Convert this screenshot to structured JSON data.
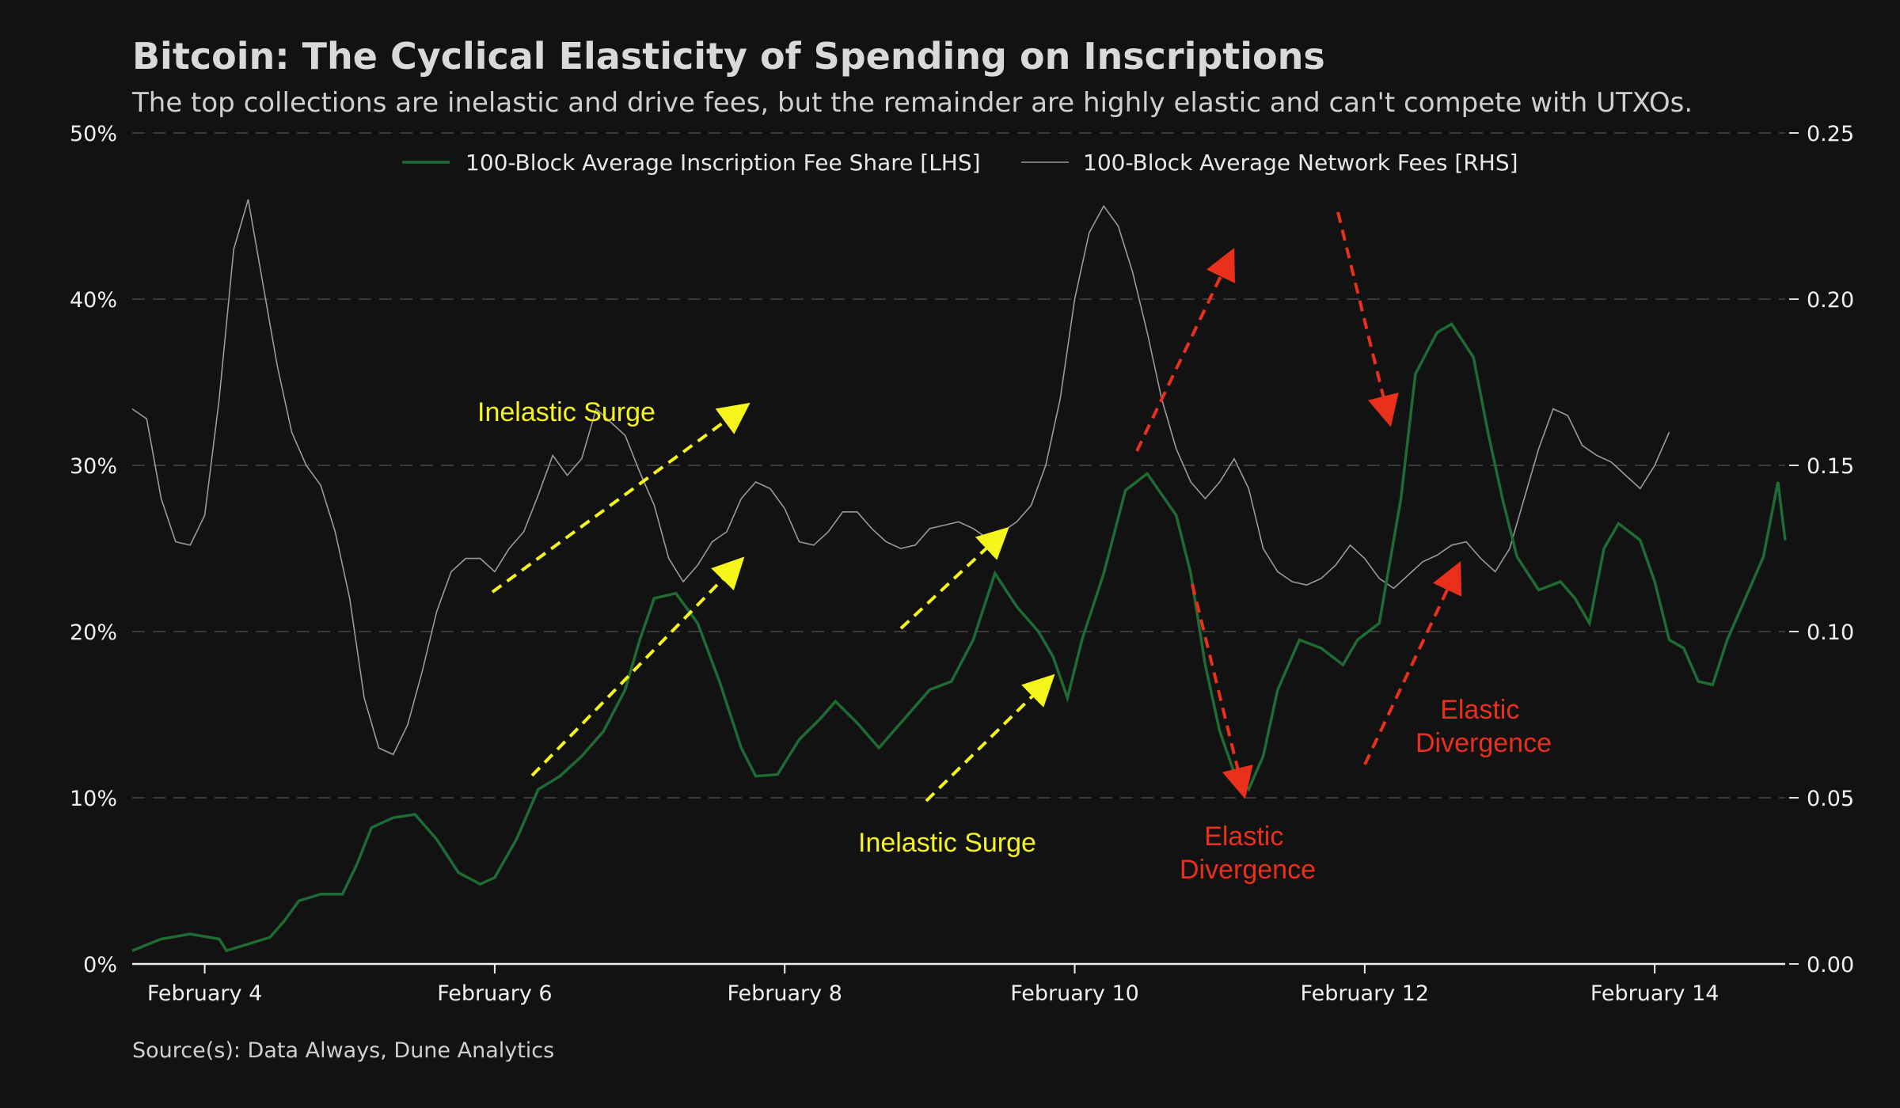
{
  "title": "Bitcoin: The Cyclical Elasticity of Spending on Inscriptions",
  "subtitle": "The top collections are inelastic and drive fees, but the remainder are highly elastic and can't compete with UTXOs.",
  "source": "Source(s): Data Always, Dune Analytics",
  "colors": {
    "background": "#121212",
    "inscription_line": "#1e6b34",
    "fees_line": "#9a9a9a",
    "surge": "#f5f51c",
    "divergence": "#e8301c",
    "grid": "#3a3a3a"
  },
  "chart_data": {
    "type": "line",
    "x_label": "",
    "x_range_days": [
      3.5,
      14.9
    ],
    "x_ticks": [
      {
        "day": 4,
        "label": "February 4"
      },
      {
        "day": 6,
        "label": "February 6"
      },
      {
        "day": 8,
        "label": "February 8"
      },
      {
        "day": 10,
        "label": "February 10"
      },
      {
        "day": 12,
        "label": "February 12"
      },
      {
        "day": 14,
        "label": "February 14"
      }
    ],
    "left_axis": {
      "range": [
        0,
        50
      ],
      "ticks": [
        0,
        10,
        20,
        30,
        40,
        50
      ],
      "tick_labels": [
        "0%",
        "10%",
        "20%",
        "30%",
        "40%",
        "50%"
      ]
    },
    "right_axis": {
      "range": [
        0,
        0.25
      ],
      "ticks": [
        0,
        0.05,
        0.1,
        0.15,
        0.2,
        0.25
      ],
      "tick_labels": [
        "0.00",
        "0.05",
        "0.10",
        "0.15",
        "0.20",
        "0.25"
      ]
    },
    "grid": "horizontal dashed",
    "legend_position": "top-center",
    "series": [
      {
        "name": "100-Block Average Inscription Fee Share [LHS]",
        "axis": "left",
        "color": "#1e6b34",
        "points": [
          [
            3.5,
            0.8
          ],
          [
            3.7,
            1.5
          ],
          [
            3.9,
            1.8
          ],
          [
            4.1,
            1.5
          ],
          [
            4.15,
            0.8
          ],
          [
            4.3,
            1.2
          ],
          [
            4.45,
            1.6
          ],
          [
            4.55,
            2.6
          ],
          [
            4.65,
            3.8
          ],
          [
            4.8,
            4.2
          ],
          [
            4.95,
            4.2
          ],
          [
            5.05,
            6.0
          ],
          [
            5.15,
            8.2
          ],
          [
            5.3,
            8.8
          ],
          [
            5.45,
            9.0
          ],
          [
            5.6,
            7.5
          ],
          [
            5.75,
            5.5
          ],
          [
            5.9,
            4.8
          ],
          [
            6.0,
            5.2
          ],
          [
            6.15,
            7.5
          ],
          [
            6.3,
            10.5
          ],
          [
            6.45,
            11.3
          ],
          [
            6.6,
            12.5
          ],
          [
            6.75,
            14.0
          ],
          [
            6.9,
            16.5
          ],
          [
            7.0,
            19.5
          ],
          [
            7.1,
            22.0
          ],
          [
            7.25,
            22.3
          ],
          [
            7.4,
            20.5
          ],
          [
            7.55,
            17.0
          ],
          [
            7.7,
            13.0
          ],
          [
            7.8,
            11.3
          ],
          [
            7.95,
            11.4
          ],
          [
            8.1,
            13.5
          ],
          [
            8.25,
            14.8
          ],
          [
            8.35,
            15.8
          ],
          [
            8.5,
            14.5
          ],
          [
            8.65,
            13.0
          ],
          [
            8.8,
            14.5
          ],
          [
            8.9,
            15.5
          ],
          [
            9.0,
            16.5
          ],
          [
            9.15,
            17.0
          ],
          [
            9.3,
            19.5
          ],
          [
            9.45,
            23.5
          ],
          [
            9.6,
            21.5
          ],
          [
            9.75,
            20.0
          ],
          [
            9.85,
            18.5
          ],
          [
            9.95,
            16.0
          ],
          [
            10.05,
            19.5
          ],
          [
            10.2,
            23.5
          ],
          [
            10.35,
            28.5
          ],
          [
            10.5,
            29.5
          ],
          [
            10.7,
            27.0
          ],
          [
            10.8,
            23.5
          ],
          [
            10.9,
            18.0
          ],
          [
            11.0,
            14.0
          ],
          [
            11.1,
            11.5
          ],
          [
            11.2,
            10.5
          ],
          [
            11.3,
            12.5
          ],
          [
            11.4,
            16.5
          ],
          [
            11.55,
            19.5
          ],
          [
            11.7,
            19.0
          ],
          [
            11.85,
            18.0
          ],
          [
            11.95,
            19.5
          ],
          [
            12.1,
            20.5
          ],
          [
            12.25,
            28.0
          ],
          [
            12.35,
            35.5
          ],
          [
            12.5,
            38.0
          ],
          [
            12.6,
            38.5
          ],
          [
            12.75,
            36.5
          ],
          [
            12.85,
            32.0
          ],
          [
            12.95,
            28.0
          ],
          [
            13.05,
            24.5
          ],
          [
            13.2,
            22.5
          ],
          [
            13.35,
            23.0
          ],
          [
            13.45,
            22.0
          ],
          [
            13.55,
            20.5
          ],
          [
            13.65,
            25.0
          ],
          [
            13.75,
            26.5
          ],
          [
            13.9,
            25.5
          ],
          [
            14.0,
            23.0
          ],
          [
            14.1,
            19.5
          ],
          [
            14.2,
            19.0
          ],
          [
            14.3,
            17.0
          ],
          [
            14.4,
            16.8
          ],
          [
            14.5,
            19.5
          ],
          [
            14.6,
            21.5
          ],
          [
            14.75,
            24.5
          ],
          [
            14.85,
            29.0
          ],
          [
            14.9,
            25.5
          ]
        ]
      },
      {
        "name": "100-Block Average Network Fees [RHS]",
        "axis": "right",
        "color": "#9a9a9a",
        "points": [
          [
            3.5,
            0.167
          ],
          [
            3.6,
            0.164
          ],
          [
            3.7,
            0.14
          ],
          [
            3.8,
            0.127
          ],
          [
            3.9,
            0.126
          ],
          [
            4.0,
            0.135
          ],
          [
            4.1,
            0.17
          ],
          [
            4.2,
            0.215
          ],
          [
            4.3,
            0.23
          ],
          [
            4.4,
            0.205
          ],
          [
            4.5,
            0.18
          ],
          [
            4.6,
            0.16
          ],
          [
            4.7,
            0.15
          ],
          [
            4.8,
            0.144
          ],
          [
            4.9,
            0.13
          ],
          [
            5.0,
            0.11
          ],
          [
            5.1,
            0.08
          ],
          [
            5.2,
            0.065
          ],
          [
            5.3,
            0.063
          ],
          [
            5.4,
            0.072
          ],
          [
            5.5,
            0.088
          ],
          [
            5.6,
            0.106
          ],
          [
            5.7,
            0.118
          ],
          [
            5.8,
            0.122
          ],
          [
            5.9,
            0.122
          ],
          [
            6.0,
            0.118
          ],
          [
            6.1,
            0.125
          ],
          [
            6.2,
            0.13
          ],
          [
            6.3,
            0.141
          ],
          [
            6.4,
            0.153
          ],
          [
            6.5,
            0.147
          ],
          [
            6.6,
            0.152
          ],
          [
            6.7,
            0.167
          ],
          [
            6.8,
            0.163
          ],
          [
            6.9,
            0.159
          ],
          [
            7.0,
            0.148
          ],
          [
            7.1,
            0.138
          ],
          [
            7.2,
            0.122
          ],
          [
            7.3,
            0.115
          ],
          [
            7.4,
            0.12
          ],
          [
            7.5,
            0.127
          ],
          [
            7.6,
            0.13
          ],
          [
            7.7,
            0.14
          ],
          [
            7.8,
            0.145
          ],
          [
            7.9,
            0.143
          ],
          [
            8.0,
            0.137
          ],
          [
            8.1,
            0.127
          ],
          [
            8.2,
            0.126
          ],
          [
            8.3,
            0.13
          ],
          [
            8.4,
            0.136
          ],
          [
            8.5,
            0.136
          ],
          [
            8.6,
            0.131
          ],
          [
            8.7,
            0.127
          ],
          [
            8.8,
            0.125
          ],
          [
            8.9,
            0.126
          ],
          [
            9.0,
            0.131
          ],
          [
            9.1,
            0.132
          ],
          [
            9.2,
            0.133
          ],
          [
            9.3,
            0.131
          ],
          [
            9.4,
            0.128
          ],
          [
            9.5,
            0.13
          ],
          [
            9.6,
            0.133
          ],
          [
            9.7,
            0.138
          ],
          [
            9.8,
            0.15
          ],
          [
            9.9,
            0.17
          ],
          [
            10.0,
            0.2
          ],
          [
            10.1,
            0.22
          ],
          [
            10.2,
            0.228
          ],
          [
            10.3,
            0.222
          ],
          [
            10.4,
            0.208
          ],
          [
            10.5,
            0.19
          ],
          [
            10.6,
            0.17
          ],
          [
            10.7,
            0.155
          ],
          [
            10.8,
            0.145
          ],
          [
            10.9,
            0.14
          ],
          [
            11.0,
            0.145
          ],
          [
            11.1,
            0.152
          ],
          [
            11.2,
            0.143
          ],
          [
            11.3,
            0.125
          ],
          [
            11.4,
            0.118
          ],
          [
            11.5,
            0.115
          ],
          [
            11.6,
            0.114
          ],
          [
            11.7,
            0.116
          ],
          [
            11.8,
            0.12
          ],
          [
            11.9,
            0.126
          ],
          [
            12.0,
            0.122
          ],
          [
            12.1,
            0.116
          ],
          [
            12.2,
            0.113
          ],
          [
            12.3,
            0.117
          ],
          [
            12.4,
            0.121
          ],
          [
            12.5,
            0.123
          ],
          [
            12.6,
            0.126
          ],
          [
            12.7,
            0.127
          ],
          [
            12.8,
            0.122
          ],
          [
            12.9,
            0.118
          ],
          [
            13.0,
            0.125
          ],
          [
            13.1,
            0.14
          ],
          [
            13.2,
            0.155
          ],
          [
            13.3,
            0.167
          ],
          [
            13.4,
            0.165
          ],
          [
            13.5,
            0.156
          ],
          [
            13.6,
            0.153
          ],
          [
            13.7,
            0.151
          ],
          [
            13.8,
            0.147
          ],
          [
            13.9,
            0.143
          ],
          [
            14.0,
            0.15
          ],
          [
            14.1,
            0.16
          ]
        ]
      }
    ],
    "annotations": [
      {
        "text": "Inelastic Surge",
        "color": "surge"
      },
      {
        "text": "Inelastic Surge",
        "color": "surge"
      },
      {
        "text": "Elastic Divergence",
        "color": "divergence"
      },
      {
        "text": "Elastic Divergence",
        "color": "divergence"
      }
    ]
  }
}
